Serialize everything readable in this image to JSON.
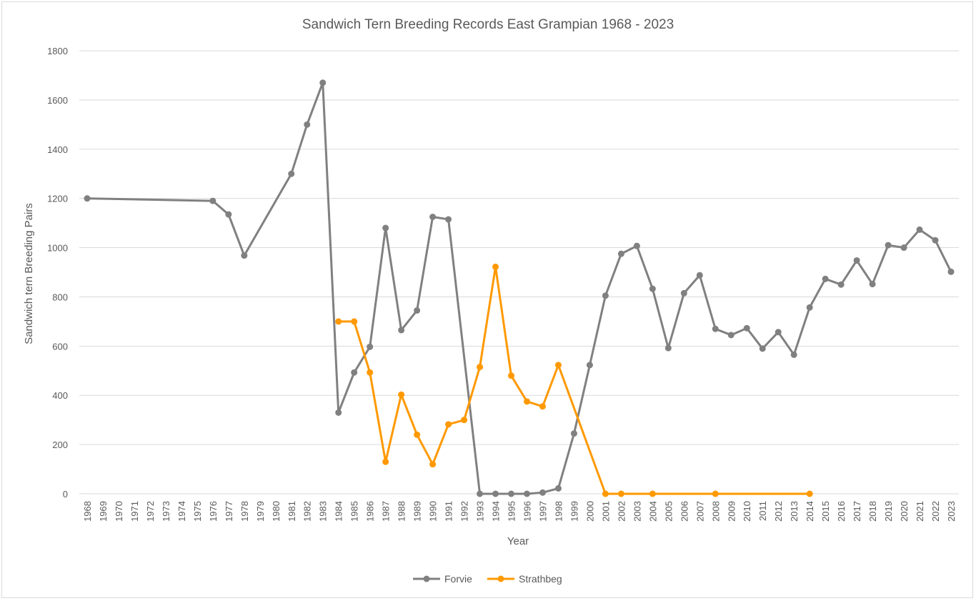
{
  "chart_data": {
    "type": "line",
    "title": "Sandwich Tern Breeding Records East Grampian 1968 - 2023",
    "xlabel": "Year",
    "ylabel": "Sandwich tern Breeding Pairs",
    "ylim": [
      0,
      1800
    ],
    "yticks": [
      0,
      200,
      400,
      600,
      800,
      1000,
      1200,
      1400,
      1600,
      1800
    ],
    "grid": "horizontal",
    "legend_position": "bottom",
    "categories": [
      "1968",
      "1969",
      "1970",
      "1971",
      "1972",
      "1973",
      "1974",
      "1975",
      "1976",
      "1977",
      "1978",
      "1979",
      "1980",
      "1981",
      "1982",
      "1983",
      "1984",
      "1985",
      "1986",
      "1987",
      "1988",
      "1989",
      "1990",
      "1991",
      "1992",
      "1993",
      "1994",
      "1995",
      "1996",
      "1997",
      "1998",
      "1999",
      "2000",
      "2001",
      "2002",
      "2003",
      "2004",
      "2005",
      "2006",
      "2007",
      "2008",
      "2009",
      "2010",
      "2011",
      "2012",
      "2013",
      "2014",
      "2015",
      "2016",
      "2017",
      "2018",
      "2019",
      "2020",
      "2021",
      "2022",
      "2023"
    ],
    "series": [
      {
        "name": "Forvie",
        "color": "#808080",
        "values": [
          1200,
          null,
          null,
          null,
          null,
          null,
          null,
          null,
          1190,
          1135,
          968,
          null,
          null,
          1300,
          1500,
          1670,
          330,
          493,
          597,
          1080,
          665,
          745,
          1125,
          1115,
          null,
          0,
          0,
          0,
          0,
          5,
          22,
          245,
          523,
          805,
          975,
          1007,
          833,
          592,
          815,
          888,
          670,
          645,
          673,
          590,
          657,
          565,
          757,
          873,
          850,
          948,
          852,
          1010,
          1000,
          1073,
          1030,
          902
        ]
      },
      {
        "name": "Strathbeg",
        "color": "#FF9900",
        "values": [
          null,
          null,
          null,
          null,
          null,
          null,
          null,
          null,
          null,
          null,
          null,
          null,
          null,
          null,
          null,
          null,
          700,
          700,
          493,
          130,
          403,
          240,
          120,
          282,
          300,
          515,
          922,
          480,
          375,
          355,
          523,
          null,
          null,
          0,
          0,
          null,
          0,
          null,
          null,
          null,
          0,
          null,
          null,
          null,
          null,
          null,
          0,
          null,
          null,
          null,
          null,
          null,
          null,
          null,
          null,
          null
        ]
      }
    ]
  }
}
